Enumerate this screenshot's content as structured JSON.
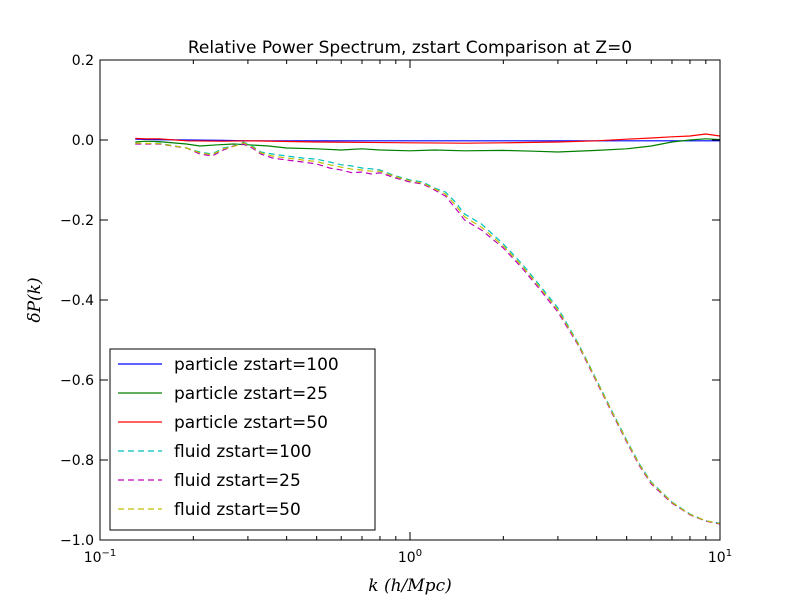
{
  "chart_data": {
    "type": "line",
    "title": "Relative Power Spectrum, zstart Comparison at Z=0",
    "xlabel": "k (h/Mpc)",
    "ylabel": "δP(k)",
    "xscale": "log",
    "xlim": [
      0.1,
      10
    ],
    "ylim": [
      -1.0,
      0.2
    ],
    "x_ticks": [
      {
        "value": 0.1,
        "base": "10",
        "exp": "−1"
      },
      {
        "value": 1,
        "base": "10",
        "exp": "0"
      },
      {
        "value": 10,
        "base": "10",
        "exp": "1"
      }
    ],
    "y_ticks": [
      {
        "value": 0.2,
        "label": "0.2"
      },
      {
        "value": 0.0,
        "label": "0.0"
      },
      {
        "value": -0.2,
        "label": "−0.2"
      },
      {
        "value": -0.4,
        "label": "−0.4"
      },
      {
        "value": -0.6,
        "label": "−0.6"
      },
      {
        "value": -0.8,
        "label": "−0.8"
      },
      {
        "value": -1.0,
        "label": "−1.0"
      }
    ],
    "grid": false,
    "legend_position": "lower-left",
    "series": [
      {
        "name": "particle zstart=100",
        "color": "#0000ff",
        "style": "solid",
        "points": [
          [
            0.13,
            0.002
          ],
          [
            0.15,
            0.001
          ],
          [
            0.19,
            0.0
          ],
          [
            0.25,
            -0.001
          ],
          [
            0.3,
            -0.002
          ],
          [
            0.5,
            -0.002
          ],
          [
            1.0,
            -0.002
          ],
          [
            2.0,
            -0.002
          ],
          [
            3.0,
            -0.002
          ],
          [
            5.0,
            -0.002
          ],
          [
            10.0,
            -0.002
          ]
        ]
      },
      {
        "name": "particle zstart=25",
        "color": "#008000",
        "style": "solid",
        "points": [
          [
            0.13,
            -0.005
          ],
          [
            0.14,
            -0.003
          ],
          [
            0.155,
            -0.004
          ],
          [
            0.19,
            -0.01
          ],
          [
            0.21,
            -0.015
          ],
          [
            0.24,
            -0.012
          ],
          [
            0.27,
            -0.01
          ],
          [
            0.3,
            -0.012
          ],
          [
            0.35,
            -0.015
          ],
          [
            0.4,
            -0.02
          ],
          [
            0.5,
            -0.022
          ],
          [
            0.6,
            -0.025
          ],
          [
            0.7,
            -0.022
          ],
          [
            0.8,
            -0.025
          ],
          [
            1.0,
            -0.027
          ],
          [
            1.2,
            -0.025
          ],
          [
            1.5,
            -0.027
          ],
          [
            2.0,
            -0.026
          ],
          [
            2.5,
            -0.028
          ],
          [
            3.0,
            -0.03
          ],
          [
            4.0,
            -0.026
          ],
          [
            5.0,
            -0.022
          ],
          [
            6.0,
            -0.015
          ],
          [
            7.0,
            -0.005
          ],
          [
            8.0,
            0.0
          ],
          [
            9.0,
            0.003
          ],
          [
            10.0,
            0.001
          ]
        ]
      },
      {
        "name": "particle zstart=50",
        "color": "#ff0000",
        "style": "solid",
        "points": [
          [
            0.13,
            0.004
          ],
          [
            0.14,
            0.003
          ],
          [
            0.155,
            0.003
          ],
          [
            0.19,
            -0.002
          ],
          [
            0.25,
            -0.003
          ],
          [
            0.3,
            -0.002
          ],
          [
            0.5,
            -0.005
          ],
          [
            1.0,
            -0.007
          ],
          [
            1.5,
            -0.008
          ],
          [
            2.0,
            -0.007
          ],
          [
            3.0,
            -0.005
          ],
          [
            4.0,
            -0.002
          ],
          [
            5.0,
            0.002
          ],
          [
            6.0,
            0.005
          ],
          [
            7.0,
            0.008
          ],
          [
            8.0,
            0.01
          ],
          [
            9.0,
            0.015
          ],
          [
            10.0,
            0.01
          ]
        ]
      },
      {
        "name": "fluid zstart=100",
        "color": "#00bfbf",
        "style": "dashed",
        "points": [
          [
            0.13,
            -0.01
          ],
          [
            0.155,
            -0.008
          ],
          [
            0.19,
            -0.02
          ],
          [
            0.21,
            -0.03
          ],
          [
            0.23,
            -0.035
          ],
          [
            0.25,
            -0.02
          ],
          [
            0.27,
            -0.015
          ],
          [
            0.29,
            -0.005
          ],
          [
            0.31,
            -0.015
          ],
          [
            0.33,
            -0.03
          ],
          [
            0.36,
            -0.035
          ],
          [
            0.4,
            -0.04
          ],
          [
            0.45,
            -0.045
          ],
          [
            0.5,
            -0.048
          ],
          [
            0.55,
            -0.055
          ],
          [
            0.6,
            -0.062
          ],
          [
            0.65,
            -0.065
          ],
          [
            0.7,
            -0.07
          ],
          [
            0.75,
            -0.072
          ],
          [
            0.8,
            -0.075
          ],
          [
            0.9,
            -0.09
          ],
          [
            1.0,
            -0.1
          ],
          [
            1.1,
            -0.105
          ],
          [
            1.2,
            -0.12
          ],
          [
            1.3,
            -0.13
          ],
          [
            1.4,
            -0.155
          ],
          [
            1.5,
            -0.185
          ],
          [
            1.7,
            -0.21
          ],
          [
            2.0,
            -0.26
          ],
          [
            2.3,
            -0.31
          ],
          [
            2.6,
            -0.36
          ],
          [
            3.0,
            -0.42
          ],
          [
            3.5,
            -0.51
          ],
          [
            4.0,
            -0.6
          ],
          [
            4.5,
            -0.68
          ],
          [
            5.0,
            -0.75
          ],
          [
            5.5,
            -0.81
          ],
          [
            6.0,
            -0.855
          ],
          [
            7.0,
            -0.905
          ],
          [
            8.0,
            -0.935
          ],
          [
            9.0,
            -0.952
          ],
          [
            10.0,
            -0.958
          ]
        ]
      },
      {
        "name": "fluid zstart=25",
        "color": "#bf00bf",
        "style": "dashed",
        "points": [
          [
            0.13,
            -0.01
          ],
          [
            0.155,
            -0.01
          ],
          [
            0.19,
            -0.02
          ],
          [
            0.21,
            -0.035
          ],
          [
            0.23,
            -0.04
          ],
          [
            0.25,
            -0.025
          ],
          [
            0.27,
            -0.015
          ],
          [
            0.29,
            -0.01
          ],
          [
            0.31,
            -0.02
          ],
          [
            0.33,
            -0.035
          ],
          [
            0.36,
            -0.045
          ],
          [
            0.4,
            -0.05
          ],
          [
            0.45,
            -0.055
          ],
          [
            0.5,
            -0.06
          ],
          [
            0.55,
            -0.07
          ],
          [
            0.6,
            -0.075
          ],
          [
            0.65,
            -0.082
          ],
          [
            0.7,
            -0.08
          ],
          [
            0.75,
            -0.085
          ],
          [
            0.8,
            -0.082
          ],
          [
            0.9,
            -0.095
          ],
          [
            1.0,
            -0.105
          ],
          [
            1.1,
            -0.11
          ],
          [
            1.2,
            -0.125
          ],
          [
            1.3,
            -0.14
          ],
          [
            1.4,
            -0.17
          ],
          [
            1.5,
            -0.2
          ],
          [
            1.7,
            -0.225
          ],
          [
            2.0,
            -0.27
          ],
          [
            2.3,
            -0.32
          ],
          [
            2.6,
            -0.37
          ],
          [
            3.0,
            -0.43
          ],
          [
            3.5,
            -0.515
          ],
          [
            4.0,
            -0.605
          ],
          [
            4.5,
            -0.685
          ],
          [
            5.0,
            -0.755
          ],
          [
            5.5,
            -0.815
          ],
          [
            6.0,
            -0.86
          ],
          [
            7.0,
            -0.908
          ],
          [
            8.0,
            -0.937
          ],
          [
            9.0,
            -0.953
          ],
          [
            10.0,
            -0.96
          ]
        ]
      },
      {
        "name": "fluid zstart=50",
        "color": "#bfbf00",
        "style": "dashed",
        "points": [
          [
            0.13,
            -0.008
          ],
          [
            0.155,
            -0.009
          ],
          [
            0.19,
            -0.02
          ],
          [
            0.21,
            -0.032
          ],
          [
            0.23,
            -0.037
          ],
          [
            0.25,
            -0.022
          ],
          [
            0.27,
            -0.016
          ],
          [
            0.29,
            -0.007
          ],
          [
            0.31,
            -0.017
          ],
          [
            0.33,
            -0.032
          ],
          [
            0.36,
            -0.04
          ],
          [
            0.4,
            -0.045
          ],
          [
            0.45,
            -0.05
          ],
          [
            0.5,
            -0.054
          ],
          [
            0.55,
            -0.062
          ],
          [
            0.6,
            -0.068
          ],
          [
            0.65,
            -0.073
          ],
          [
            0.7,
            -0.075
          ],
          [
            0.75,
            -0.078
          ],
          [
            0.8,
            -0.078
          ],
          [
            0.9,
            -0.092
          ],
          [
            1.0,
            -0.102
          ],
          [
            1.1,
            -0.108
          ],
          [
            1.2,
            -0.122
          ],
          [
            1.3,
            -0.135
          ],
          [
            1.4,
            -0.162
          ],
          [
            1.5,
            -0.192
          ],
          [
            1.7,
            -0.218
          ],
          [
            2.0,
            -0.265
          ],
          [
            2.3,
            -0.315
          ],
          [
            2.6,
            -0.365
          ],
          [
            3.0,
            -0.425
          ],
          [
            3.5,
            -0.512
          ],
          [
            4.0,
            -0.602
          ],
          [
            4.5,
            -0.682
          ],
          [
            5.0,
            -0.752
          ],
          [
            5.5,
            -0.812
          ],
          [
            6.0,
            -0.857
          ],
          [
            7.0,
            -0.906
          ],
          [
            8.0,
            -0.936
          ],
          [
            9.0,
            -0.952
          ],
          [
            10.0,
            -0.959
          ]
        ]
      }
    ]
  }
}
